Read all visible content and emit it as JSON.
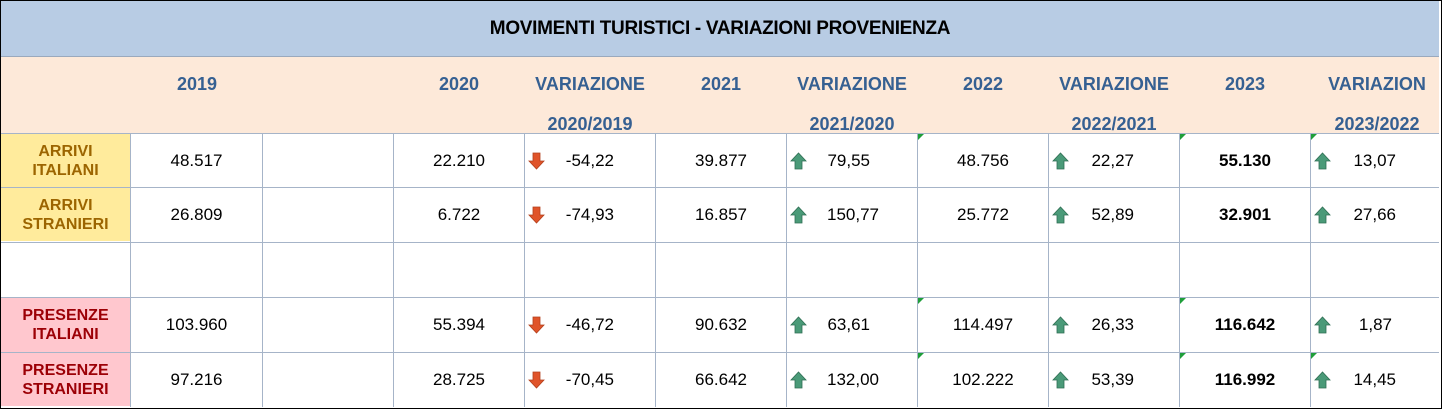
{
  "title": "MOVIMENTI TURISTICI - VARIAZIONI PROVENIENZA",
  "headers": {
    "y2019": "2019",
    "y2020": "2020",
    "var1": "VARIAZIONE",
    "var1_sub": "2020/2019",
    "y2021": "2021",
    "var2": "VARIAZIONE",
    "var2_sub": "2021/2020",
    "y2022": "2022",
    "var3": "VARIAZIONE",
    "var3_sub": "2022/2021",
    "y2023": "2023",
    "var4": "VARIAZION",
    "var4_sub": "2023/2022"
  },
  "rows": [
    {
      "label_line1": "ARRIVI",
      "label_line2": "ITALIANI",
      "v2019": "48.517",
      "v2020": "22.210",
      "var1": "-54,22",
      "v2021": "39.877",
      "var2": "79,55",
      "v2022": "48.756",
      "var3": "22,27",
      "v2023": "55.130",
      "var4": "13,07"
    },
    {
      "label_line1": "ARRIVI",
      "label_line2": "STRANIERI",
      "v2019": "26.809",
      "v2020": "6.722",
      "var1": "-74,93",
      "v2021": "16.857",
      "var2": "150,77",
      "v2022": "25.772",
      "var3": "52,89",
      "v2023": "32.901",
      "var4": "27,66"
    },
    {
      "label_line1": "PRESENZE",
      "label_line2": "ITALIANI",
      "v2019": "103.960",
      "v2020": "55.394",
      "var1": "-46,72",
      "v2021": "90.632",
      "var2": "63,61",
      "v2022": "114.497",
      "var3": "26,33",
      "v2023": "116.642",
      "var4": "1,87"
    },
    {
      "label_line1": "PRESENZE",
      "label_line2": "STRANIERI",
      "v2019": "97.216",
      "v2020": "28.725",
      "var1": "-70,45",
      "v2021": "66.642",
      "var2": "132,00",
      "v2022": "102.222",
      "var3": "53,39",
      "v2023": "116.992",
      "var4": "14,45"
    }
  ],
  "colors": {
    "title_bg": "#b8cce4",
    "header_bg": "#fde9d9",
    "header_text": "#366092",
    "arrivi_bg": "#ffeb9c",
    "arrivi_text": "#9c6500",
    "presenze_bg": "#ffc7ce",
    "presenze_text": "#9c0006",
    "arrow_down": "#e0542a",
    "arrow_up": "#4a9a78"
  },
  "icons": {
    "down": "arrow-down-icon",
    "up": "arrow-up-icon"
  }
}
